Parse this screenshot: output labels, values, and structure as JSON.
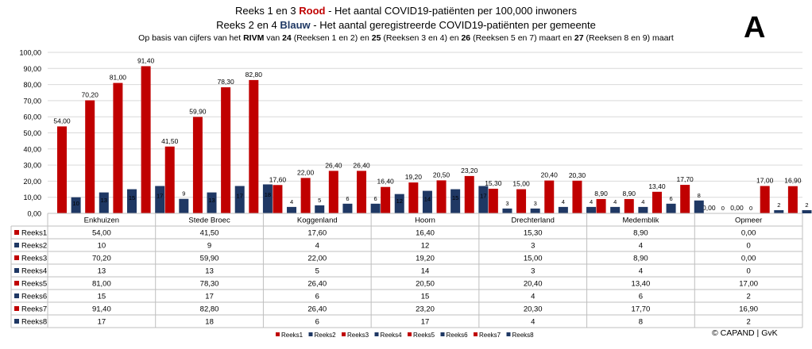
{
  "title": {
    "line1_prefix": "Reeks 1 en 3",
    "line1_red": "Rood",
    "line1_suffix": "- Het aantal COVID19-patiënten per 100,000 inwoners",
    "line2_prefix": "Reeks 2 en 4",
    "line2_blue": "Blauw",
    "line2_suffix": "- Het aantal geregistreerde COVID19-patiënten per gemeente",
    "line3_a": "Op basis van cijfers van het",
    "line3_rivm": "RIVM",
    "line3_b": "van",
    "line3_n24": "24",
    "line3_c": "(Reeksen 1 en 2) en",
    "line3_n25": "25",
    "line3_d": "(Reeksen 3 en 4)  en",
    "line3_n26": "26",
    "line3_e": "(Reeksen 5 en 7) maart  en",
    "line3_n27": "27",
    "line3_f": "(Reeksen 8 en  9) maart"
  },
  "badge": "A",
  "copyright": "© CAPAND | GvK",
  "colors": {
    "red": "#c00000",
    "blue": "#1f3864",
    "grid": "#d9d9d9",
    "border": "#bfbfbf"
  },
  "chart_data": {
    "type": "bar",
    "categories": [
      "Enkhuizen",
      "Stede Broec",
      "Koggenland",
      "Hoorn",
      "Drechterland",
      "Medemblik",
      "Opmeer"
    ],
    "ylim": [
      0,
      100
    ],
    "yticks": [
      "0,00",
      "10,00",
      "20,00",
      "30,00",
      "40,00",
      "50,00",
      "60,00",
      "70,00",
      "80,00",
      "90,00",
      "100,00"
    ],
    "series": [
      {
        "name": "Reeks1",
        "color": "#c00000",
        "values": [
          54.0,
          41.5,
          17.6,
          16.4,
          15.3,
          8.9,
          0.0
        ],
        "labels": [
          "54,00",
          "41,50",
          "17,60",
          "16,40",
          "15,30",
          "8,90",
          "0,00"
        ]
      },
      {
        "name": "Reeks2",
        "color": "#1f3864",
        "values": [
          10,
          9,
          4,
          12,
          3,
          4,
          0
        ],
        "labels": [
          "10",
          "9",
          "4",
          "12",
          "3",
          "4",
          "0"
        ]
      },
      {
        "name": "Reeks3",
        "color": "#c00000",
        "values": [
          70.2,
          59.9,
          22.0,
          19.2,
          15.0,
          8.9,
          0.0
        ],
        "labels": [
          "70,20",
          "59,90",
          "22,00",
          "19,20",
          "15,00",
          "8,90",
          "0,00"
        ]
      },
      {
        "name": "Reeks4",
        "color": "#1f3864",
        "values": [
          13,
          13,
          5,
          14,
          3,
          4,
          0
        ],
        "labels": [
          "13",
          "13",
          "5",
          "14",
          "3",
          "4",
          "0"
        ]
      },
      {
        "name": "Reeks5",
        "color": "#c00000",
        "values": [
          81.0,
          78.3,
          26.4,
          20.5,
          20.4,
          13.4,
          17.0
        ],
        "labels": [
          "81,00",
          "78,30",
          "26,40",
          "20,50",
          "20,40",
          "13,40",
          "17,00"
        ]
      },
      {
        "name": "Reeks6",
        "color": "#1f3864",
        "values": [
          15,
          17,
          6,
          15,
          4,
          6,
          2
        ],
        "labels": [
          "15",
          "17",
          "6",
          "15",
          "4",
          "6",
          "2"
        ]
      },
      {
        "name": "Reeks7",
        "color": "#c00000",
        "values": [
          91.4,
          82.8,
          26.4,
          23.2,
          20.3,
          17.7,
          16.9
        ],
        "labels": [
          "91,40",
          "82,80",
          "26,40",
          "23,20",
          "20,30",
          "17,70",
          "16,90"
        ]
      },
      {
        "name": "Reeks8",
        "color": "#1f3864",
        "values": [
          17,
          18,
          6,
          17,
          4,
          8,
          2
        ],
        "labels": [
          "17",
          "18",
          "6",
          "17",
          "4",
          "8",
          "2"
        ]
      }
    ],
    "legend": "bottom"
  }
}
